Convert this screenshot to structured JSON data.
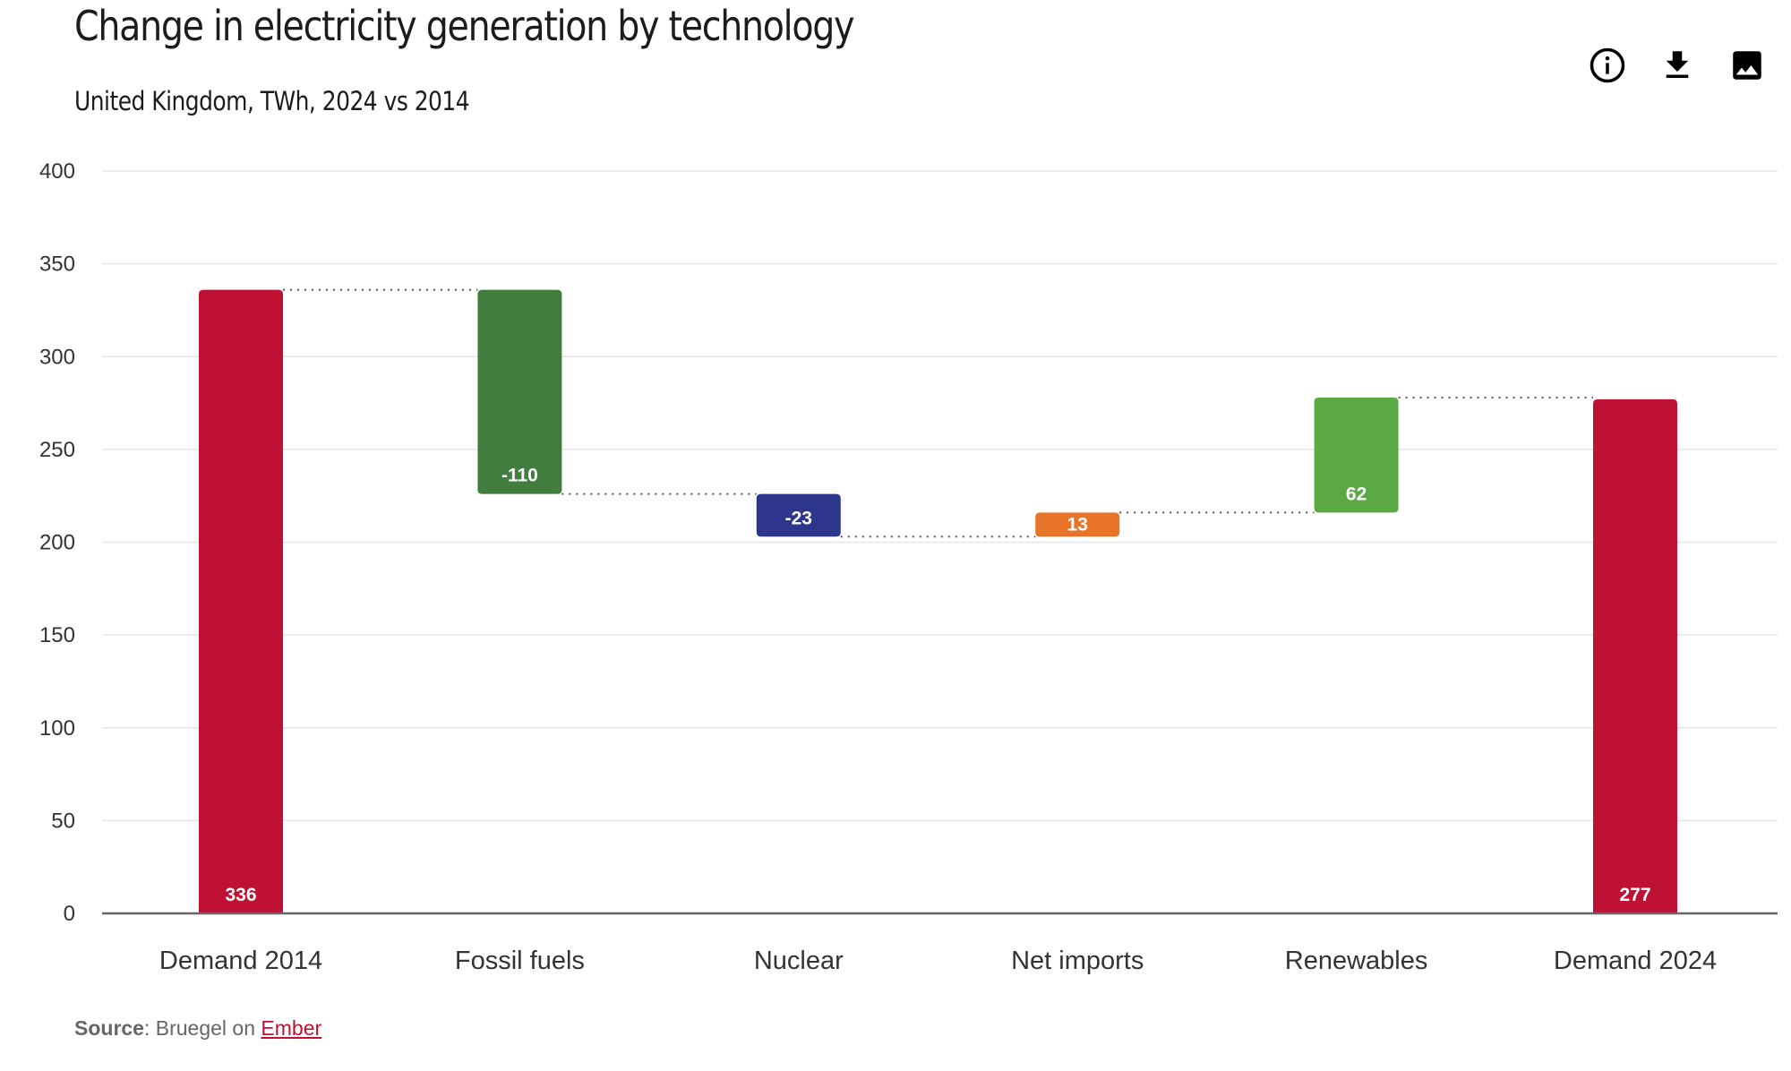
{
  "header": {
    "title": "Change in electricity generation by technology",
    "subtitle": "United Kingdom, TWh, 2024 vs 2014"
  },
  "toolbar": {
    "icons": [
      "info-icon",
      "download-icon",
      "image-icon"
    ]
  },
  "footer": {
    "source_label": "Source",
    "source_text": ": Bruegel on ",
    "source_link": "Ember"
  },
  "chart_data": {
    "type": "waterfall",
    "title": "Change in electricity generation by technology",
    "subtitle": "United Kingdom, TWh, 2024 vs 2014",
    "xlabel": "",
    "ylabel": "",
    "ylim": [
      0,
      400
    ],
    "yticks": [
      0,
      50,
      100,
      150,
      200,
      250,
      300,
      350,
      400
    ],
    "grid": true,
    "legend": "none",
    "categories": [
      "Demand 2014",
      "Fossil fuels",
      "Nuclear",
      "Net imports",
      "Renewables",
      "Demand 2024"
    ],
    "bars": [
      {
        "category": "Demand 2014",
        "kind": "total",
        "value": 336,
        "label": "336",
        "color": "#be1134"
      },
      {
        "category": "Fossil fuels",
        "kind": "delta",
        "value": -110,
        "label": "-110",
        "color": "#417e3d"
      },
      {
        "category": "Nuclear",
        "kind": "delta",
        "value": -23,
        "label": "-23",
        "color": "#2e368b"
      },
      {
        "category": "Net imports",
        "kind": "delta",
        "value": 13,
        "label": "13",
        "color": "#e8742a"
      },
      {
        "category": "Renewables",
        "kind": "delta",
        "value": 62,
        "label": "62",
        "color": "#5ba945"
      },
      {
        "category": "Demand 2024",
        "kind": "total",
        "value": 277,
        "label": "277",
        "color": "#be1134"
      }
    ]
  }
}
